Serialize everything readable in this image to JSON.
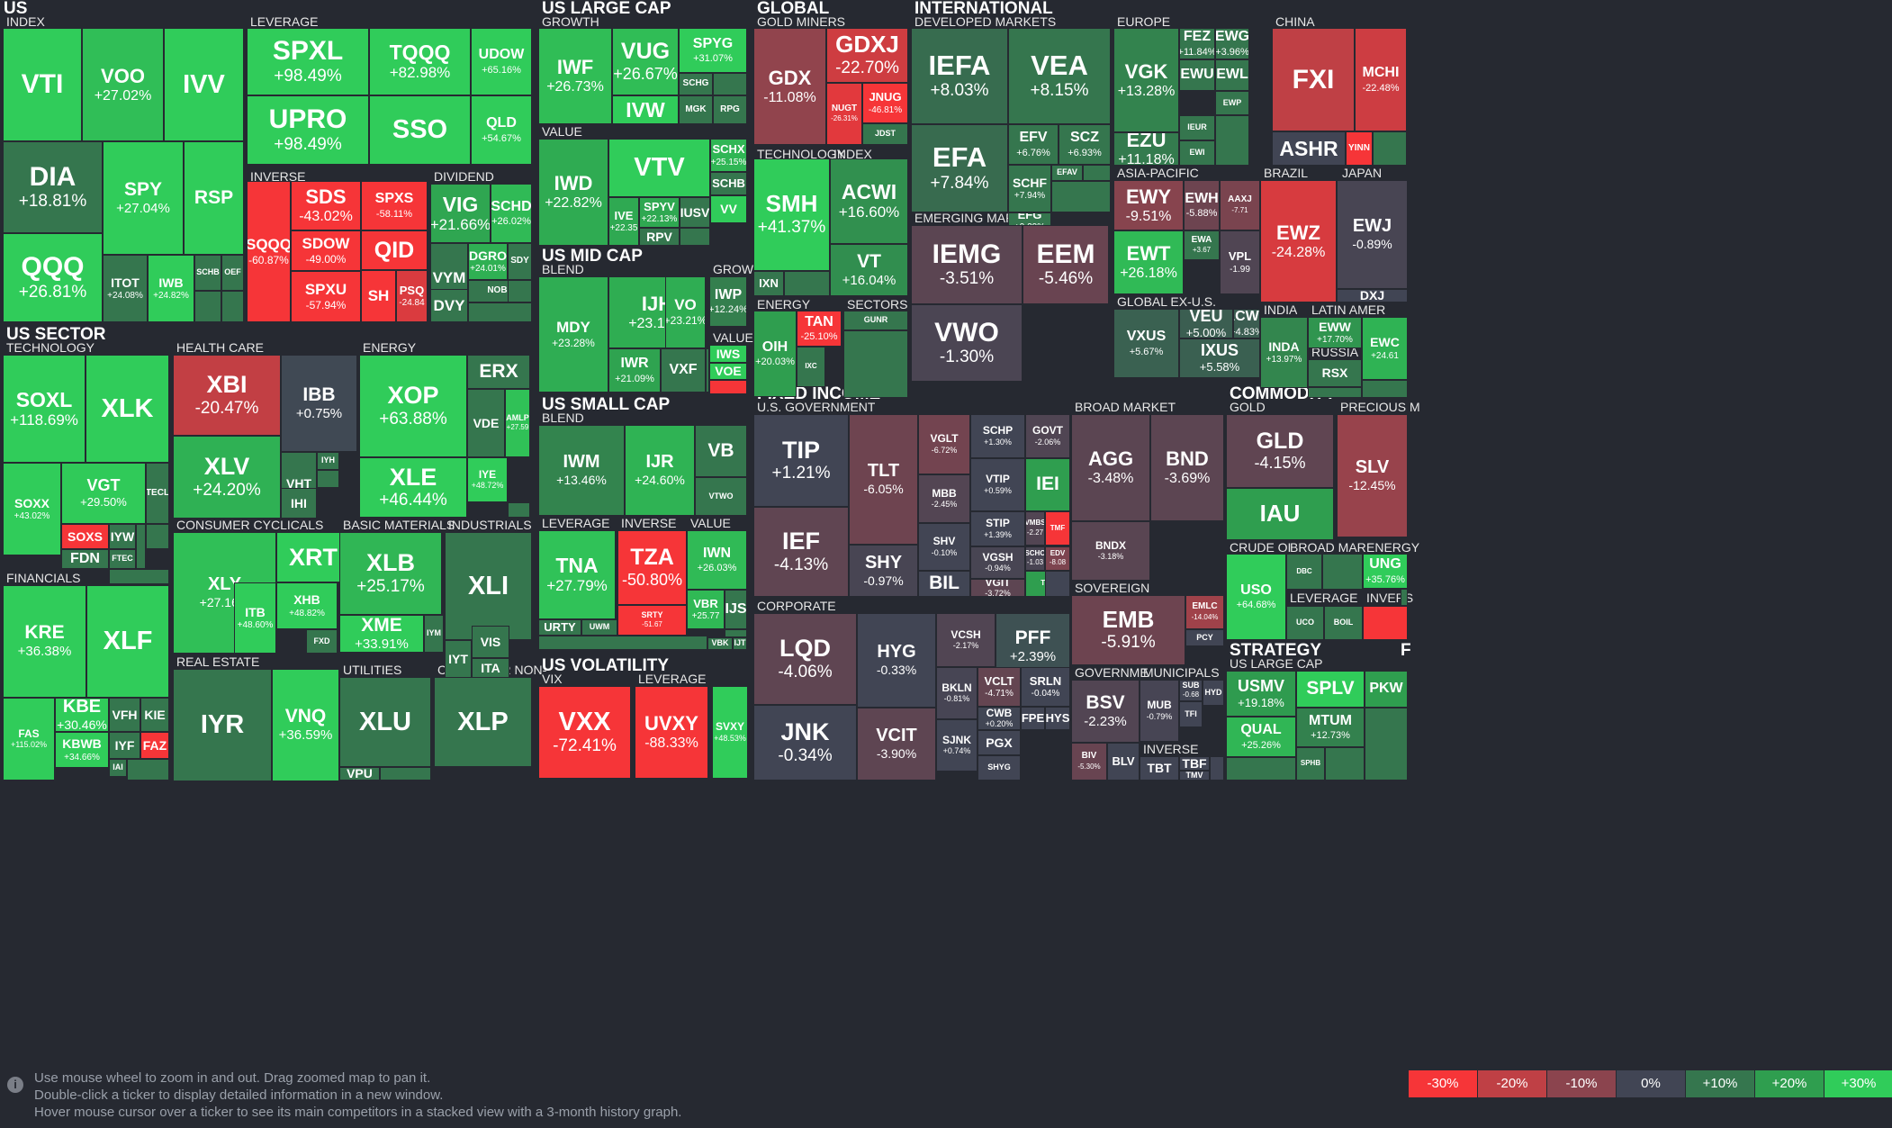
{
  "chart_data": {
    "type": "heatmap",
    "groups": [
      {
        "name": "US",
        "subs": [
          "INDEX",
          "LEVERAGE",
          "INVERSE",
          "DIVIDEND"
        ]
      },
      {
        "name": "US LARGE CAP",
        "subs": [
          "GROWTH",
          "VALUE"
        ]
      },
      {
        "name": "GLOBAL",
        "subs": [
          "GOLD MINERS",
          "TECHNOLOGY",
          "INDEX",
          "ENERGY",
          "SECTORS"
        ]
      },
      {
        "name": "INTERNATIONAL",
        "subs": [
          "DEVELOPED MARKETS",
          "EUROPE",
          "CHINA",
          "EMERGING MARKETS",
          "ASIA-PACIFIC",
          "BRAZIL",
          "JAPAN",
          "GLOBAL EX-U.S.",
          "INDIA",
          "LATIN AMER",
          "RUSSIA"
        ]
      },
      {
        "name": "US MID CAP",
        "subs": [
          "BLEND",
          "GROW",
          "VALUE"
        ]
      },
      {
        "name": "US SMALL CAP",
        "subs": [
          "BLEND",
          "LEVERAGE",
          "INVERSE",
          "VALUE",
          "GROWTH"
        ]
      },
      {
        "name": "US SECTOR",
        "subs": [
          "TECHNOLOGY",
          "HEALTH CARE",
          "ENERGY",
          "FINANCIALS",
          "CONSUMER CYCLICALS",
          "BASIC MATERIALS",
          "INDUSTRIALS",
          "REAL ESTATE",
          "UTILITIES",
          "CONSUMER NON-"
        ]
      },
      {
        "name": "US VOLATILITY",
        "subs": [
          "VIX",
          "LEVERAGE"
        ]
      },
      {
        "name": "FIXED INCOME",
        "subs": [
          "U.S. GOVERNMENT",
          "BROAD MARKET",
          "CORPORATE",
          "SOVEREIGN",
          "GOVERNME",
          "MUNICIPALS",
          "INVERSE"
        ]
      },
      {
        "name": "COMMODITY",
        "subs": [
          "GOLD",
          "PRECIOUS M",
          "CRUDE OI",
          "BROAD MAR",
          "ENERGY",
          "LEVERAGE",
          "INVERS"
        ]
      },
      {
        "name": "STRATEGY",
        "subs": [
          "US LARGE CAP"
        ]
      },
      {
        "name": "F",
        "subs": []
      }
    ],
    "tiles": [
      {
        "ticker": "VTI",
        "change": null
      },
      {
        "ticker": "VOO",
        "change": "+27.02%"
      },
      {
        "ticker": "IVV",
        "change": null
      },
      {
        "ticker": "DIA",
        "change": "+18.81%"
      },
      {
        "ticker": "SPY",
        "change": "+27.04%"
      },
      {
        "ticker": "RSP",
        "change": null
      },
      {
        "ticker": "QQQ",
        "change": "+26.81%"
      },
      {
        "ticker": "ITOT",
        "change": "+24.08%"
      },
      {
        "ticker": "IWB",
        "change": "+24.82%"
      },
      {
        "ticker": "SCHB",
        "change": null
      },
      {
        "ticker": "OEF",
        "change": null
      },
      {
        "ticker": "SPXL",
        "change": "+98.49%"
      },
      {
        "ticker": "TQQQ",
        "change": "+82.98%"
      },
      {
        "ticker": "UDOW",
        "change": "+65.16%"
      },
      {
        "ticker": "UPRO",
        "change": "+98.49%"
      },
      {
        "ticker": "SSO",
        "change": null
      },
      {
        "ticker": "QLD",
        "change": "+54.67%"
      },
      {
        "ticker": "SDS",
        "change": "-43.02%"
      },
      {
        "ticker": "SPXS",
        "change": "-58.11%"
      },
      {
        "ticker": "SQQQ",
        "change": "-60.87%"
      },
      {
        "ticker": "SDOW",
        "change": "-49.00%"
      },
      {
        "ticker": "QID",
        "change": null
      },
      {
        "ticker": "PSQ",
        "change": "-24.84"
      },
      {
        "ticker": "SPXU",
        "change": "-57.94%"
      },
      {
        "ticker": "SH",
        "change": null
      },
      {
        "ticker": "VIG",
        "change": "+21.66%"
      },
      {
        "ticker": "SCHD",
        "change": "+26.02%"
      },
      {
        "ticker": "DGRO",
        "change": "+24.01%"
      },
      {
        "ticker": "SDY",
        "change": null
      },
      {
        "ticker": "VYM",
        "change": null
      },
      {
        "ticker": "NOBL",
        "change": null
      },
      {
        "ticker": "DVY",
        "change": null
      },
      {
        "ticker": "IWF",
        "change": "+26.73%"
      },
      {
        "ticker": "VUG",
        "change": "+26.67%"
      },
      {
        "ticker": "SPYG",
        "change": "+31.07%"
      },
      {
        "ticker": "SCHG",
        "change": null
      },
      {
        "ticker": "IVW",
        "change": null
      },
      {
        "ticker": "MGK",
        "change": null
      },
      {
        "ticker": "RPG",
        "change": null
      },
      {
        "ticker": "IWD",
        "change": "+22.82%"
      },
      {
        "ticker": "VTV",
        "change": null
      },
      {
        "ticker": "SCHX",
        "change": "+25.15%"
      },
      {
        "ticker": "SCHB",
        "change": null
      },
      {
        "ticker": "IVE",
        "change": "+22.35"
      },
      {
        "ticker": "SPYV",
        "change": "+22.13%"
      },
      {
        "ticker": "IUSV",
        "change": null
      },
      {
        "ticker": "VV",
        "change": null
      },
      {
        "ticker": "RPV",
        "change": null
      },
      {
        "ticker": "GDX",
        "change": "-11.08%"
      },
      {
        "ticker": "GDXJ",
        "change": "-22.70%"
      },
      {
        "ticker": "JNUG",
        "change": "-46.81%"
      },
      {
        "ticker": "NUGT",
        "change": "-26.31%"
      },
      {
        "ticker": "JDST",
        "change": null
      },
      {
        "ticker": "SMH",
        "change": "+41.37%"
      },
      {
        "ticker": "IXN",
        "change": null
      },
      {
        "ticker": "ACWI",
        "change": "+16.60%"
      },
      {
        "ticker": "VT",
        "change": "+16.04%"
      },
      {
        "ticker": "OIH",
        "change": "+20.03%"
      },
      {
        "ticker": "TAN",
        "change": "-25.10%"
      },
      {
        "ticker": "IXC",
        "change": null
      },
      {
        "ticker": "GUNR",
        "change": null
      },
      {
        "ticker": "IEFA",
        "change": "+8.03%"
      },
      {
        "ticker": "VEA",
        "change": "+8.15%"
      },
      {
        "ticker": "EFA",
        "change": "+7.84%"
      },
      {
        "ticker": "EFV",
        "change": "+6.76%"
      },
      {
        "ticker": "SCZ",
        "change": "+6.93%"
      },
      {
        "ticker": "SCHF",
        "change": "+7.94%"
      },
      {
        "ticker": "EFAV",
        "change": null
      },
      {
        "ticker": "EFG",
        "change": "+9.29%"
      },
      {
        "ticker": "VGK",
        "change": "+13.28%"
      },
      {
        "ticker": "FEZ",
        "change": "+11.84%"
      },
      {
        "ticker": "EWG",
        "change": "+3.96%"
      },
      {
        "ticker": "EWU",
        "change": null
      },
      {
        "ticker": "EWL",
        "change": null
      },
      {
        "ticker": "EWP",
        "change": null
      },
      {
        "ticker": "EZU",
        "change": "+11.18%"
      },
      {
        "ticker": "IEUR",
        "change": null
      },
      {
        "ticker": "EWI",
        "change": null
      },
      {
        "ticker": "FXI",
        "change": null
      },
      {
        "ticker": "MCHI",
        "change": "-22.48%"
      },
      {
        "ticker": "ASHR",
        "change": null
      },
      {
        "ticker": "YINN",
        "change": null
      },
      {
        "ticker": "IEMG",
        "change": "-3.51%"
      },
      {
        "ticker": "EEM",
        "change": "-5.46%"
      },
      {
        "ticker": "VWO",
        "change": "-1.30%"
      },
      {
        "ticker": "EWY",
        "change": "-9.51%"
      },
      {
        "ticker": "EWH",
        "change": "-5.88%"
      },
      {
        "ticker": "AAXJ",
        "change": "-7.71"
      },
      {
        "ticker": "EWT",
        "change": "+26.18%"
      },
      {
        "ticker": "EWA",
        "change": "+3.67"
      },
      {
        "ticker": "VPL",
        "change": "-1.99"
      },
      {
        "ticker": "EWZ",
        "change": "-24.28%"
      },
      {
        "ticker": "EWJ",
        "change": "-0.89%"
      },
      {
        "ticker": "DXJ",
        "change": null
      },
      {
        "ticker": "VEU",
        "change": "+5.00%"
      },
      {
        "ticker": "ACWX",
        "change": "+4.83%"
      },
      {
        "ticker": "VXUS",
        "change": "+5.67%"
      },
      {
        "ticker": "IXUS",
        "change": "+5.58%"
      },
      {
        "ticker": "INDA",
        "change": "+13.97%"
      },
      {
        "ticker": "EWW",
        "change": "+17.70%"
      },
      {
        "ticker": "EWC",
        "change": "+24.61"
      },
      {
        "ticker": "RSX",
        "change": null
      },
      {
        "ticker": "MDY",
        "change": "+23.28%"
      },
      {
        "ticker": "IJH",
        "change": "+23.17%"
      },
      {
        "ticker": "VO",
        "change": "+23.21%"
      },
      {
        "ticker": "IWR",
        "change": "+21.09%"
      },
      {
        "ticker": "VXF",
        "change": null
      },
      {
        "ticker": "IWP",
        "change": "+12.24%"
      },
      {
        "ticker": "IWS",
        "change": null
      },
      {
        "ticker": "VOE",
        "change": null
      },
      {
        "ticker": "IWM",
        "change": "+13.46%"
      },
      {
        "ticker": "IJR",
        "change": "+24.60%"
      },
      {
        "ticker": "VB",
        "change": null
      },
      {
        "ticker": "VTWO",
        "change": null
      },
      {
        "ticker": "TNA",
        "change": "+27.79%"
      },
      {
        "ticker": "URTY",
        "change": null
      },
      {
        "ticker": "UWM",
        "change": null
      },
      {
        "ticker": "TZA",
        "change": "-50.80%"
      },
      {
        "ticker": "SRTY",
        "change": "-51.67"
      },
      {
        "ticker": "IWN",
        "change": "+26.03%"
      },
      {
        "ticker": "VBR",
        "change": "+25.77"
      },
      {
        "ticker": "IJS",
        "change": null
      },
      {
        "ticker": "VBK",
        "change": null
      },
      {
        "ticker": "IJT",
        "change": null
      },
      {
        "ticker": "SOXL",
        "change": "+118.69%"
      },
      {
        "ticker": "XLK",
        "change": null
      },
      {
        "ticker": "SOXX",
        "change": "+43.02%"
      },
      {
        "ticker": "VGT",
        "change": "+29.50%"
      },
      {
        "ticker": "TECL",
        "change": null
      },
      {
        "ticker": "SOXS",
        "change": null
      },
      {
        "ticker": "FDN",
        "change": null
      },
      {
        "ticker": "IYW",
        "change": null
      },
      {
        "ticker": "FTEC",
        "change": null
      },
      {
        "ticker": "XBI",
        "change": "-20.47%"
      },
      {
        "ticker": "IBB",
        "change": "+0.75%"
      },
      {
        "ticker": "XLV",
        "change": "+24.20%"
      },
      {
        "ticker": "VHT",
        "change": null
      },
      {
        "ticker": "IYH",
        "change": null
      },
      {
        "ticker": "IHI",
        "change": null
      },
      {
        "ticker": "XOP",
        "change": "+63.88%"
      },
      {
        "ticker": "ERX",
        "change": null
      },
      {
        "ticker": "VDE",
        "change": null
      },
      {
        "ticker": "AMLP",
        "change": "+27.59"
      },
      {
        "ticker": "XLE",
        "change": "+46.44%"
      },
      {
        "ticker": "IYE",
        "change": "+48.72%"
      },
      {
        "ticker": "KRE",
        "change": "+36.38%"
      },
      {
        "ticker": "XLF",
        "change": null
      },
      {
        "ticker": "FAS",
        "change": "+115.02%"
      },
      {
        "ticker": "KBE",
        "change": "+30.46%"
      },
      {
        "ticker": "VFH",
        "change": null
      },
      {
        "ticker": "KIE",
        "change": null
      },
      {
        "ticker": "IYF",
        "change": null
      },
      {
        "ticker": "FAZ",
        "change": null
      },
      {
        "ticker": "KBWB",
        "change": "+34.66%"
      },
      {
        "ticker": "IAI",
        "change": null
      },
      {
        "ticker": "XLY",
        "change": "+27.16%"
      },
      {
        "ticker": "XRT",
        "change": null
      },
      {
        "ticker": "ITB",
        "change": "+48.60%"
      },
      {
        "ticker": "XHB",
        "change": "+48.82%"
      },
      {
        "ticker": "FXD",
        "change": null
      },
      {
        "ticker": "XLB",
        "change": "+25.17%"
      },
      {
        "ticker": "XME",
        "change": "+33.91%"
      },
      {
        "ticker": "IYM",
        "change": null
      },
      {
        "ticker": "XLI",
        "change": null
      },
      {
        "ticker": "IYT",
        "change": null
      },
      {
        "ticker": "VIS",
        "change": null
      },
      {
        "ticker": "ITA",
        "change": null
      },
      {
        "ticker": "IYR",
        "change": null
      },
      {
        "ticker": "VNQ",
        "change": "+36.59%"
      },
      {
        "ticker": "XLU",
        "change": null
      },
      {
        "ticker": "VPU",
        "change": null
      },
      {
        "ticker": "XLP",
        "change": null
      },
      {
        "ticker": "VXX",
        "change": "-72.41%"
      },
      {
        "ticker": "UVXY",
        "change": "-88.33%"
      },
      {
        "ticker": "SVXY",
        "change": "+48.53%"
      },
      {
        "ticker": "TIP",
        "change": "+1.21%"
      },
      {
        "ticker": "TLT",
        "change": "-6.05%"
      },
      {
        "ticker": "VGLT",
        "change": "-6.72%"
      },
      {
        "ticker": "SCHP",
        "change": "+1.30%"
      },
      {
        "ticker": "GOVT",
        "change": "-2.06%"
      },
      {
        "ticker": "MBB",
        "change": "-2.45%"
      },
      {
        "ticker": "VTIP",
        "change": "+0.59%"
      },
      {
        "ticker": "IEI",
        "change": null
      },
      {
        "ticker": "IEF",
        "change": "-4.13%"
      },
      {
        "ticker": "SHY",
        "change": "-0.97%"
      },
      {
        "ticker": "SHV",
        "change": "-0.10%"
      },
      {
        "ticker": "STIP",
        "change": "+1.39%"
      },
      {
        "ticker": "VMBS",
        "change": "-2.27"
      },
      {
        "ticker": "TMF",
        "change": null
      },
      {
        "ticker": "VGSH",
        "change": "-0.94%"
      },
      {
        "ticker": "SCHO",
        "change": "-1.03"
      },
      {
        "ticker": "EDV",
        "change": "-8.08"
      },
      {
        "ticker": "BIL",
        "change": null
      },
      {
        "ticker": "VGIT",
        "change": "-3.72%"
      },
      {
        "ticker": "TLH",
        "change": null
      },
      {
        "ticker": "AGG",
        "change": "-3.48%"
      },
      {
        "ticker": "BND",
        "change": "-3.69%"
      },
      {
        "ticker": "BNDX",
        "change": "-3.18%"
      },
      {
        "ticker": "LQD",
        "change": "-4.06%"
      },
      {
        "ticker": "HYG",
        "change": "-0.33%"
      },
      {
        "ticker": "VCSH",
        "change": "-2.17%"
      },
      {
        "ticker": "PFF",
        "change": "+2.39%"
      },
      {
        "ticker": "JNK",
        "change": "-0.34%"
      },
      {
        "ticker": "BKLN",
        "change": "-0.81%"
      },
      {
        "ticker": "VCLT",
        "change": "-4.71%"
      },
      {
        "ticker": "SRLN",
        "change": "-0.04%"
      },
      {
        "ticker": "CWB",
        "change": "+0.20%"
      },
      {
        "ticker": "FPE",
        "change": null
      },
      {
        "ticker": "HYS",
        "change": null
      },
      {
        "ticker": "VCIT",
        "change": "-3.90%"
      },
      {
        "ticker": "SJNK",
        "change": "+0.74%"
      },
      {
        "ticker": "PGX",
        "change": null
      },
      {
        "ticker": "SHYG",
        "change": null
      },
      {
        "ticker": "EMB",
        "change": "-5.91%"
      },
      {
        "ticker": "EMLC",
        "change": "-14.04%"
      },
      {
        "ticker": "PCY",
        "change": null
      },
      {
        "ticker": "BSV",
        "change": "-2.23%"
      },
      {
        "ticker": "BIV",
        "change": "-5.30%"
      },
      {
        "ticker": "BLV",
        "change": null
      },
      {
        "ticker": "MUB",
        "change": "-0.79%"
      },
      {
        "ticker": "SUB",
        "change": "-0.68"
      },
      {
        "ticker": "HYD",
        "change": null
      },
      {
        "ticker": "TFI",
        "change": null
      },
      {
        "ticker": "TBT",
        "change": null
      },
      {
        "ticker": "TBF",
        "change": null
      },
      {
        "ticker": "TMV",
        "change": null
      },
      {
        "ticker": "GLD",
        "change": "-4.15%"
      },
      {
        "ticker": "IAU",
        "change": null
      },
      {
        "ticker": "SLV",
        "change": "-12.45%"
      },
      {
        "ticker": "USO",
        "change": "+64.68%"
      },
      {
        "ticker": "DBC",
        "change": null
      },
      {
        "ticker": "UNG",
        "change": "+35.76%"
      },
      {
        "ticker": "UCO",
        "change": null
      },
      {
        "ticker": "BOIL",
        "change": null
      },
      {
        "ticker": "USMV",
        "change": "+19.18%"
      },
      {
        "ticker": "SPLV",
        "change": null
      },
      {
        "ticker": "PKW",
        "change": null
      },
      {
        "ticker": "MTUM",
        "change": "+12.73%"
      },
      {
        "ticker": "QUAL",
        "change": "+25.26%"
      },
      {
        "ticker": "SPHB",
        "change": null
      }
    ],
    "color_scale": {
      "labels": [
        "-30%",
        "-20%",
        "-10%",
        "0%",
        "+10%",
        "+20%",
        "+30%"
      ],
      "colors": [
        "#f63538",
        "#bf4045",
        "#8b444e",
        "#414554",
        "#35764e",
        "#2f9e4f",
        "#30cc5a"
      ]
    }
  },
  "footer": {
    "help_lines": [
      "Use mouse wheel to zoom in and out. Drag zoomed map to pan it.",
      "Double-click a ticker to display detailed information in a new window.",
      "Hover mouse cursor over a ticker to see its main competitors in a stacked view with a 3-month history graph."
    ]
  }
}
